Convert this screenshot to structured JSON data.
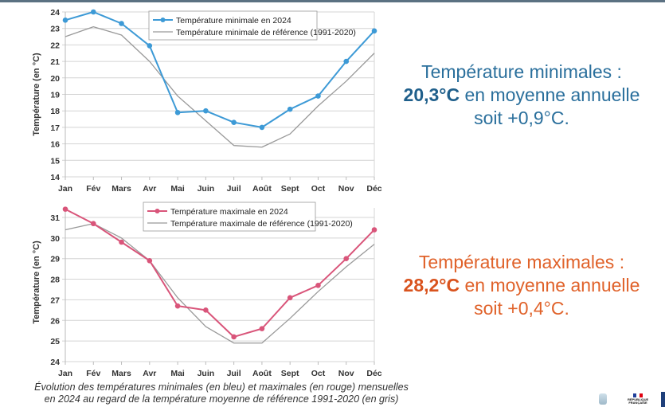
{
  "chart_data": [
    {
      "type": "line",
      "title": "",
      "xlabel": "",
      "ylabel": "Température (en °C)",
      "categories": [
        "Jan",
        "Fév",
        "Mars",
        "Avr",
        "Mai",
        "Juin",
        "Juil",
        "Août",
        "Sept",
        "Oct",
        "Nov",
        "Déc"
      ],
      "ylim": [
        14,
        24
      ],
      "yticks": [
        14,
        15,
        16,
        17,
        18,
        19,
        20,
        21,
        22,
        23,
        24
      ],
      "grid": true,
      "legend_position": "top-right",
      "series": [
        {
          "name": "Température minimale en 2024",
          "color": "#3d9ad6",
          "markers": true,
          "values": [
            23.5,
            24.0,
            23.3,
            21.95,
            17.9,
            18.0,
            17.3,
            17.0,
            18.1,
            18.9,
            21.0,
            22.85
          ]
        },
        {
          "name": "Température minimale de référence (1991-2020)",
          "color": "#999999",
          "markers": false,
          "values": [
            22.5,
            23.1,
            22.6,
            21.0,
            18.9,
            17.4,
            15.9,
            15.8,
            16.6,
            18.3,
            19.8,
            21.5
          ]
        }
      ]
    },
    {
      "type": "line",
      "title": "",
      "xlabel": "",
      "ylabel": "Température (en °C)",
      "categories": [
        "Jan",
        "Fév",
        "Mars",
        "Avr",
        "Mai",
        "Juin",
        "Juil",
        "Août",
        "Sept",
        "Oct",
        "Nov",
        "Déc"
      ],
      "ylim": [
        24,
        31.7
      ],
      "yticks": [
        24,
        25,
        26,
        27,
        28,
        29,
        30,
        31
      ],
      "grid": true,
      "legend_position": "top-right",
      "series": [
        {
          "name": "Température maximale en 2024",
          "color": "#d9557a",
          "markers": true,
          "values": [
            31.4,
            30.7,
            29.8,
            28.9,
            26.7,
            26.5,
            25.2,
            25.6,
            27.1,
            27.7,
            29.0,
            30.4
          ]
        },
        {
          "name": "Température maximale de référence (1991-2020)",
          "color": "#999999",
          "markers": false,
          "values": [
            30.4,
            30.7,
            30.0,
            28.9,
            27.1,
            25.7,
            24.9,
            24.9,
            26.1,
            27.4,
            28.6,
            29.7
          ]
        }
      ]
    }
  ],
  "summary_min": {
    "line1": "Température minimales :",
    "value": "20,3°C",
    "line2_rest": " en moyenne annuelle",
    "line3": "soit +0,9°C."
  },
  "summary_max": {
    "line1": "Température maximales :",
    "value": "28,2°C",
    "line2_rest": " en moyenne annuelle",
    "line3": "soit +0,4°C."
  },
  "caption": {
    "line1": "Évolution des températures minimales (en bleu) et maximales (en rouge) mensuelles",
    "line2": "en 2024 au regard de la température moyenne de référence 1991-2020 (en gris)"
  },
  "logos": {
    "rf_text": "RÉPUBLIQUE FRANÇAISE",
    "flag_colors": [
      "#1f3f9a",
      "#ffffff",
      "#e1000f"
    ]
  }
}
